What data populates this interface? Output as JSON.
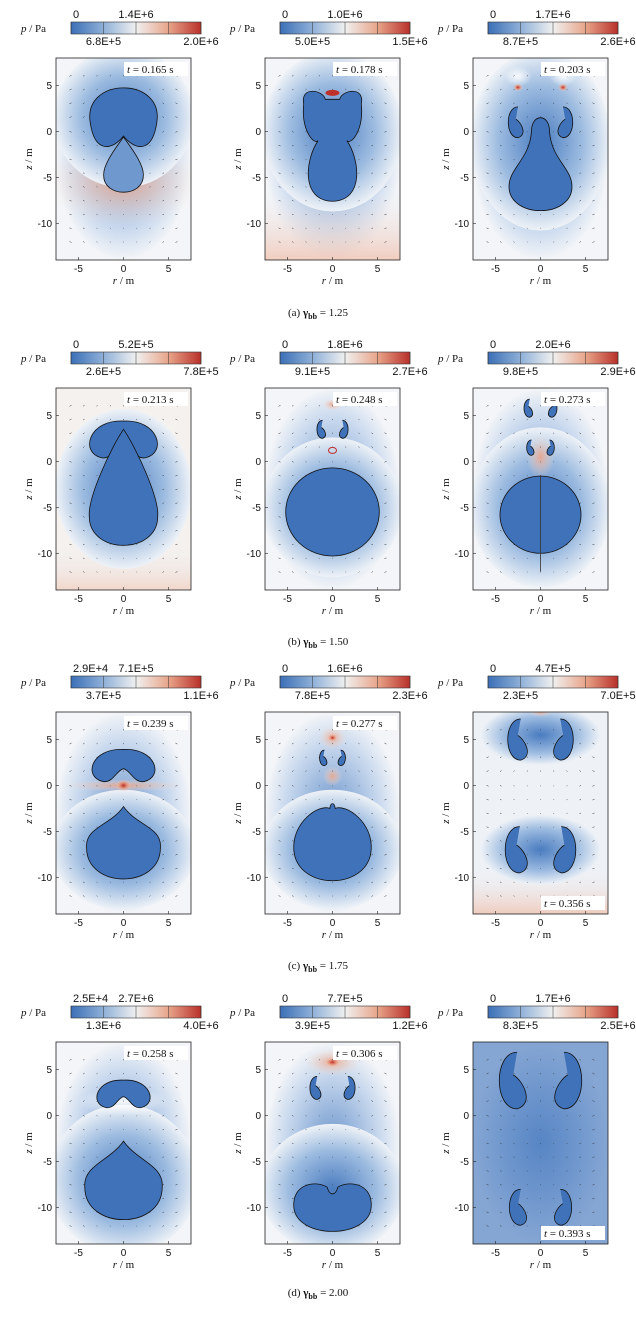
{
  "figure": {
    "colorbar_label_p": "p",
    "colorbar_label_unit": " / Pa",
    "axis_r": "r",
    "axis_z": "z",
    "axis_unit": " / m",
    "gamma_symbol": "γ",
    "gamma_sub": "bb",
    "x_ticks": [
      "-5",
      "0",
      "5"
    ],
    "y_ticks": [
      "5",
      "0",
      "-5",
      "-10"
    ],
    "colors": {
      "low": "#3b6fb6",
      "mid": "#f2f3f5",
      "high": "#c0302a",
      "cb_1": "#3b6fb6",
      "cb_2": "#8fb0d8",
      "cb_3": "#f0f0f0",
      "cb_4": "#e8a58a",
      "cb_5": "#b8302a"
    },
    "rows": [
      {
        "caption_prefix": "(a)",
        "caption_value": "1.25",
        "panels": [
          {
            "cb_top_left": "0",
            "cb_top_mid": "1.4E+6",
            "cb_bot_mid": "6.8E+5",
            "cb_bot_right": "2.0E+6",
            "time_label": "t",
            "time_value": " = 0.165 s",
            "time_pos": "top",
            "style": "a1"
          },
          {
            "cb_top_left": "0",
            "cb_top_mid": "1.0E+6",
            "cb_bot_mid": "5.0E+5",
            "cb_bot_right": "1.5E+6",
            "time_label": "t",
            "time_value": " = 0.178 s",
            "time_pos": "top",
            "style": "a2"
          },
          {
            "cb_top_left": "0",
            "cb_top_mid": "1.7E+6",
            "cb_bot_mid": "8.7E+5",
            "cb_bot_right": "2.6E+6",
            "time_label": "t",
            "time_value": " = 0.203 s",
            "time_pos": "top",
            "style": "a3"
          }
        ]
      },
      {
        "caption_prefix": "(b)",
        "caption_value": "1.50",
        "panels": [
          {
            "cb_top_left": "0",
            "cb_top_mid": "5.2E+5",
            "cb_bot_mid": "2.6E+5",
            "cb_bot_right": "7.8E+5",
            "time_label": "t",
            "time_value": " = 0.213 s",
            "time_pos": "top",
            "style": "b1"
          },
          {
            "cb_top_left": "0",
            "cb_top_mid": "1.8E+6",
            "cb_bot_mid": "9.1E+5",
            "cb_bot_right": "2.7E+6",
            "time_label": "t",
            "time_value": " = 0.248 s",
            "time_pos": "top",
            "style": "b2"
          },
          {
            "cb_top_left": "0",
            "cb_top_mid": "2.0E+6",
            "cb_bot_mid": "9.8E+5",
            "cb_bot_right": "2.9E+6",
            "time_label": "t",
            "time_value": " = 0.273 s",
            "time_pos": "top",
            "style": "b3"
          }
        ]
      },
      {
        "caption_prefix": "(c)",
        "caption_value": "1.75",
        "panels": [
          {
            "cb_top_left": "2.9E+4",
            "cb_top_mid": "7.1E+5",
            "cb_bot_mid": "3.7E+5",
            "cb_bot_right": "1.1E+6",
            "time_label": "t",
            "time_value": " = 0.239 s",
            "time_pos": "top",
            "style": "c1"
          },
          {
            "cb_top_left": "0",
            "cb_top_mid": "1.6E+6",
            "cb_bot_mid": "7.8E+5",
            "cb_bot_right": "2.3E+6",
            "time_label": "t",
            "time_value": " = 0.277 s",
            "time_pos": "top",
            "style": "c2"
          },
          {
            "cb_top_left": "0",
            "cb_top_mid": "4.7E+5",
            "cb_bot_mid": "2.3E+5",
            "cb_bot_right": "7.0E+5",
            "time_label": "t",
            "time_value": " = 0.356 s",
            "time_pos": "bottom",
            "style": "c3"
          }
        ]
      },
      {
        "caption_prefix": "(d)",
        "caption_value": "2.00",
        "panels": [
          {
            "cb_top_left": "2.5E+4",
            "cb_top_mid": "2.7E+6",
            "cb_bot_mid": "1.3E+6",
            "cb_bot_right": "4.0E+6",
            "time_label": "t",
            "time_value": " = 0.258 s",
            "time_pos": "top",
            "style": "d1"
          },
          {
            "cb_top_left": "0",
            "cb_top_mid": "7.7E+5",
            "cb_bot_mid": "3.9E+5",
            "cb_bot_right": "1.2E+6",
            "time_label": "t",
            "time_value": " = 0.306 s",
            "time_pos": "top",
            "style": "d2"
          },
          {
            "cb_top_left": "0",
            "cb_top_mid": "1.7E+6",
            "cb_bot_mid": "8.3E+5",
            "cb_bot_right": "2.5E+6",
            "time_label": "t",
            "time_value": " = 0.393 s",
            "time_pos": "bottom",
            "style": "d3"
          }
        ]
      }
    ]
  }
}
